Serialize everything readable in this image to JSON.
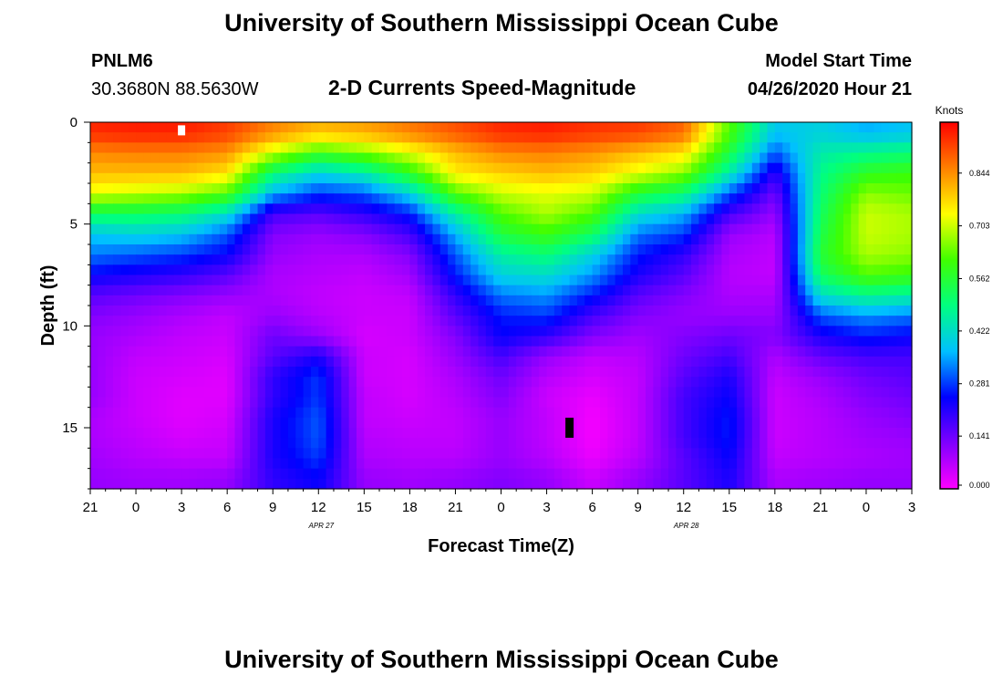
{
  "header": {
    "title": "University of Southern Mississippi Ocean Cube",
    "station_id": "PNLM6",
    "coords": "30.3680N 88.5630W",
    "subtitle": "2-D Currents Speed-Magnitude",
    "model_start_label": "Model Start Time",
    "model_start_value": "04/26/2020 Hour 21"
  },
  "footer": {
    "title": "University of Southern Mississippi Ocean Cube"
  },
  "chart_data": {
    "type": "heatmap",
    "title": "2-D Currents Speed-Magnitude",
    "xlabel": "Forecast Time(Z)",
    "ylabel": "Depth (ft)",
    "x_hours_from_start": [
      0,
      54
    ],
    "x_tick_labels": [
      "21",
      "0",
      "3",
      "6",
      "9",
      "12",
      "15",
      "18",
      "21",
      "0",
      "3",
      "6",
      "9",
      "12",
      "15",
      "18",
      "21",
      "0",
      "3"
    ],
    "x_date_labels": [
      {
        "label": "APR 27",
        "hour": 15
      },
      {
        "label": "APR 28",
        "hour": 39
      }
    ],
    "ylim": [
      0,
      18
    ],
    "y_ticks": [
      0,
      5,
      10,
      15
    ],
    "colorbar": {
      "label": "Knots",
      "range": [
        0,
        0.98
      ],
      "tick_values": [
        0.0,
        0.141,
        0.281,
        0.422,
        0.562,
        0.703,
        0.844
      ],
      "tick_labels": [
        "0.000",
        "0.141",
        "0.281",
        "0.422",
        "0.562",
        "0.703",
        "0.844"
      ],
      "colors": [
        "#ff00ff",
        "#8000ff",
        "#0000ff",
        "#00c0ff",
        "#00ff80",
        "#40ff00",
        "#ffff00",
        "#ff8000",
        "#ff0000"
      ]
    },
    "grid": false,
    "depth_levels_ft": [
      0.5,
      1.5,
      2.5,
      3.5,
      4.5,
      5.5,
      6.5,
      7.5,
      8.5,
      9.5,
      10.5,
      11.5,
      12.5,
      13.5,
      14.5,
      15.5,
      16.5,
      17.5
    ],
    "time_hours": [
      0,
      3,
      6,
      9,
      12,
      15,
      18,
      21,
      24,
      27,
      30,
      33,
      36,
      39,
      42,
      45,
      48,
      51,
      54
    ],
    "speed_knots": [
      [
        0.94,
        0.95,
        0.95,
        0.92,
        0.85,
        0.8,
        0.82,
        0.86,
        0.9,
        0.94,
        0.95,
        0.93,
        0.92,
        0.88,
        0.62,
        0.38,
        0.4,
        0.36,
        0.38
      ],
      [
        0.85,
        0.86,
        0.86,
        0.84,
        0.7,
        0.6,
        0.65,
        0.72,
        0.8,
        0.85,
        0.86,
        0.84,
        0.8,
        0.76,
        0.55,
        0.3,
        0.45,
        0.48,
        0.5
      ],
      [
        0.8,
        0.8,
        0.8,
        0.76,
        0.5,
        0.4,
        0.45,
        0.58,
        0.75,
        0.78,
        0.8,
        0.78,
        0.72,
        0.66,
        0.45,
        0.2,
        0.48,
        0.58,
        0.6
      ],
      [
        0.72,
        0.7,
        0.68,
        0.62,
        0.36,
        0.28,
        0.3,
        0.4,
        0.62,
        0.7,
        0.72,
        0.7,
        0.56,
        0.5,
        0.3,
        0.14,
        0.5,
        0.66,
        0.64
      ],
      [
        0.52,
        0.52,
        0.5,
        0.42,
        0.18,
        0.16,
        0.2,
        0.26,
        0.46,
        0.62,
        0.68,
        0.62,
        0.42,
        0.36,
        0.18,
        0.1,
        0.52,
        0.7,
        0.68
      ],
      [
        0.38,
        0.4,
        0.38,
        0.3,
        0.12,
        0.1,
        0.12,
        0.18,
        0.36,
        0.55,
        0.6,
        0.52,
        0.32,
        0.28,
        0.1,
        0.07,
        0.54,
        0.7,
        0.68
      ],
      [
        0.32,
        0.3,
        0.28,
        0.24,
        0.1,
        0.08,
        0.08,
        0.12,
        0.3,
        0.46,
        0.5,
        0.4,
        0.26,
        0.2,
        0.08,
        0.06,
        0.56,
        0.68,
        0.66
      ],
      [
        0.24,
        0.22,
        0.2,
        0.16,
        0.08,
        0.07,
        0.06,
        0.09,
        0.26,
        0.4,
        0.42,
        0.34,
        0.22,
        0.16,
        0.07,
        0.06,
        0.52,
        0.62,
        0.6
      ],
      [
        0.16,
        0.14,
        0.12,
        0.1,
        0.08,
        0.06,
        0.05,
        0.06,
        0.2,
        0.32,
        0.34,
        0.26,
        0.16,
        0.12,
        0.08,
        0.08,
        0.42,
        0.48,
        0.46
      ],
      [
        0.12,
        0.1,
        0.08,
        0.06,
        0.1,
        0.07,
        0.05,
        0.05,
        0.16,
        0.26,
        0.28,
        0.18,
        0.12,
        0.1,
        0.1,
        0.1,
        0.3,
        0.34,
        0.32
      ],
      [
        0.1,
        0.08,
        0.06,
        0.05,
        0.14,
        0.1,
        0.04,
        0.05,
        0.12,
        0.24,
        0.2,
        0.12,
        0.09,
        0.12,
        0.14,
        0.12,
        0.22,
        0.26,
        0.24
      ],
      [
        0.1,
        0.06,
        0.05,
        0.04,
        0.16,
        0.22,
        0.05,
        0.04,
        0.1,
        0.18,
        0.1,
        0.06,
        0.07,
        0.14,
        0.18,
        0.08,
        0.15,
        0.18,
        0.18
      ],
      [
        0.1,
        0.05,
        0.04,
        0.03,
        0.2,
        0.28,
        0.05,
        0.04,
        0.08,
        0.14,
        0.07,
        0.04,
        0.06,
        0.16,
        0.22,
        0.06,
        0.1,
        0.14,
        0.16
      ],
      [
        0.1,
        0.05,
        0.03,
        0.03,
        0.2,
        0.28,
        0.06,
        0.04,
        0.07,
        0.12,
        0.05,
        0.02,
        0.06,
        0.18,
        0.24,
        0.05,
        0.08,
        0.12,
        0.14
      ],
      [
        0.08,
        0.05,
        0.03,
        0.04,
        0.22,
        0.3,
        0.06,
        0.05,
        0.06,
        0.1,
        0.06,
        0.01,
        0.06,
        0.18,
        0.26,
        0.05,
        0.07,
        0.1,
        0.12
      ],
      [
        0.08,
        0.06,
        0.04,
        0.05,
        0.22,
        0.3,
        0.07,
        0.06,
        0.06,
        0.1,
        0.06,
        0.01,
        0.06,
        0.18,
        0.26,
        0.05,
        0.07,
        0.09,
        0.1
      ],
      [
        0.09,
        0.07,
        0.06,
        0.06,
        0.22,
        0.28,
        0.08,
        0.07,
        0.07,
        0.1,
        0.07,
        0.02,
        0.07,
        0.16,
        0.24,
        0.06,
        0.07,
        0.08,
        0.09
      ],
      [
        0.1,
        0.09,
        0.09,
        0.1,
        0.2,
        0.24,
        0.1,
        0.09,
        0.1,
        0.12,
        0.1,
        0.05,
        0.1,
        0.16,
        0.22,
        0.08,
        0.09,
        0.1,
        0.1
      ]
    ],
    "markers": [
      {
        "name": "white-marker",
        "hour": 6,
        "depth_ft": 0.4,
        "color": "#ffffff"
      },
      {
        "name": "black-marker",
        "hour": 31.5,
        "depth_ft": 15,
        "color": "#000000"
      }
    ]
  }
}
